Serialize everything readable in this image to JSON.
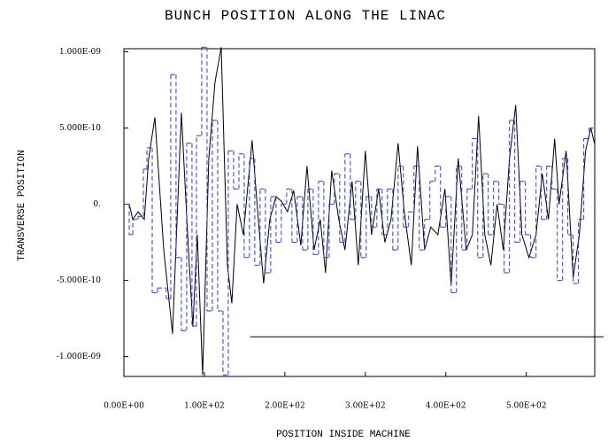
{
  "chart_data": {
    "type": "line",
    "title": "BUNCH POSITION ALONG THE LINAC",
    "xlabel": "POSITION INSIDE MACHINE",
    "ylabel": "TRANSVERSE POSITION",
    "xlim": [
      0,
      585
    ],
    "ylim": [
      -1.13e-09,
      1.02e-09
    ],
    "xticks": [
      {
        "value": 0,
        "label": "0.00E+00"
      },
      {
        "value": 100,
        "label": "1.00E+02"
      },
      {
        "value": 200,
        "label": "2.00E+02"
      },
      {
        "value": 300,
        "label": "3.00E+02"
      },
      {
        "value": 400,
        "label": "4.00E+02"
      },
      {
        "value": 500,
        "label": "5.00E+02"
      }
    ],
    "yticks": [
      {
        "value": 1e-09,
        "label": "1.000E-09"
      },
      {
        "value": 5e-10,
        "label": "5.000E-10"
      },
      {
        "value": 0,
        "label": "0."
      },
      {
        "value": -5e-10,
        "label": "-5.000E-10"
      },
      {
        "value": -1e-09,
        "label": "-1.000E-09"
      }
    ],
    "series": [
      {
        "color": "#000000",
        "dash": false,
        "drawstyle": "linear",
        "x": [
          0,
          6.6,
          11,
          17.6,
          25.3,
          30.8,
          38.5,
          49.5,
          60.4,
          71.4,
          80.2,
          85.7,
          91.2,
          97.8,
          105.5,
          113.2,
          120.9,
          128.6,
          134.1,
          140.7,
          148.4,
          159.3,
          167,
          173.6,
          181.3,
          189,
          195.6,
          203.3,
          211,
          219.8,
          227.5,
          236.3,
          244,
          250.5,
          258.2,
          267,
          274.7,
          283.5,
          291.2,
          300,
          307.7,
          316.5,
          324.2,
          331.9,
          340.7,
          348.4,
          357.1,
          364.8,
          373.6,
          381.3,
          390.1,
          398.9,
          406.6,
          415.4,
          425.3,
          433,
          440.7,
          448.4,
          456,
          463.7,
          471.4,
          479.1,
          486.8,
          494.5,
          503.3,
          512.1,
          519.8,
          527.5,
          535.2,
          540.7,
          549.5,
          558.2,
          565.9,
          573.6,
          580.2,
          584.6
        ],
        "values": [
          0,
          0,
          -1e-10,
          -5e-11,
          -1e-10,
          3e-10,
          5.7e-10,
          -3e-10,
          -8.5e-10,
          6e-10,
          -3e-10,
          -8e-10,
          -2e-10,
          -1.12e-09,
          3e-10,
          8e-10,
          1.03e-09,
          -4e-10,
          -6.5e-10,
          0,
          -2e-10,
          4.2e-10,
          -1e-10,
          -5.2e-10,
          -1e-10,
          5e-11,
          2e-11,
          -5e-11,
          9e-11,
          -2.7e-10,
          2.5e-10,
          -3e-10,
          -1e-10,
          -4.5e-10,
          2.2e-10,
          -1e-10,
          -3e-10,
          1.5e-10,
          -4e-10,
          3.5e-10,
          -2e-10,
          1e-10,
          -2.5e-10,
          -1e-10,
          4e-10,
          -5e-11,
          -4e-10,
          3.8e-10,
          -3e-10,
          -1.5e-10,
          -2e-10,
          1e-10,
          -5.3e-10,
          3e-10,
          -3e-10,
          -2e-10,
          5.8e-10,
          -2e-10,
          -4e-10,
          0,
          -3e-10,
          3e-10,
          6.5e-10,
          -2e-10,
          -3.5e-10,
          -2e-10,
          2e-10,
          -1e-10,
          4.3e-10,
          0,
          3.5e-10,
          -4.8e-10,
          -2e-10,
          3.5e-10,
          5e-10,
          4e-10
        ]
      },
      {
        "color": "#2a3bd6",
        "dash": true,
        "drawstyle": "steps-post",
        "x": [
          0,
          6.6,
          11,
          17.6,
          24.2,
          28.6,
          35.2,
          41.8,
          52.7,
          58.2,
          64.8,
          71.4,
          78,
          84.6,
          90.1,
          96.7,
          103.3,
          109.9,
          116.5,
          123.1,
          129.7,
          136.3,
          142.9,
          149.5,
          156,
          162.6,
          169.2,
          175.8,
          182.4,
          189,
          195.6,
          202.2,
          208.8,
          215.4,
          222,
          228.6,
          235.2,
          241.8,
          248.4,
          255,
          261.5,
          268.1,
          274.7,
          281.3,
          287.9,
          294.5,
          301.1,
          307.7,
          314.3,
          320.9,
          327.5,
          334.1,
          340.7,
          347.3,
          353.8,
          360.4,
          367,
          373.6,
          380.2,
          386.8,
          393.4,
          400,
          406.6,
          413.2,
          419.8,
          426.4,
          433,
          439.6,
          446.2,
          452.7,
          459.3,
          465.9,
          472.5,
          479.1,
          485.7,
          492.3,
          498.9,
          505.5,
          512.1,
          518.7,
          525.3,
          531.9,
          538.5,
          545.1,
          551.6,
          558.2,
          564.8,
          571.4,
          578,
          584.6
        ],
        "values": [
          0,
          -2e-10,
          -1e-10,
          -8e-11,
          2.3e-10,
          3.7e-10,
          -5.8e-10,
          -5.5e-10,
          -6.2e-10,
          8.5e-10,
          -3.5e-10,
          -8.3e-10,
          4e-10,
          -8e-10,
          4.5e-10,
          1.03e-09,
          -7e-10,
          5.5e-10,
          -7e-10,
          -1.12e-09,
          3.5e-10,
          1e-10,
          3.3e-10,
          -3.5e-10,
          3e-10,
          -4e-10,
          1e-10,
          -4.5e-10,
          5e-11,
          -2.5e-10,
          0,
          1e-10,
          -2.5e-10,
          5e-11,
          -3e-10,
          1e-10,
          -3.3e-10,
          1.5e-10,
          -3.5e-10,
          0,
          2e-10,
          -2.5e-10,
          3.3e-10,
          -1e-10,
          1.5e-10,
          -3.5e-10,
          5e-11,
          -1.5e-10,
          1e-10,
          -2e-10,
          1e-10,
          -3e-10,
          2.5e-10,
          -1.5e-10,
          -5e-11,
          2.5e-10,
          -3e-10,
          -1e-10,
          1.5e-10,
          2.5e-10,
          -1.5e-10,
          5e-11,
          -5.8e-10,
          2.5e-10,
          -3e-10,
          1e-10,
          4.3e-10,
          -3.5e-10,
          2e-10,
          -2e-10,
          1.5e-10,
          0,
          -4.5e-10,
          5.5e-10,
          -2.5e-10,
          1.5e-10,
          -2e-10,
          -3.5e-10,
          2.5e-10,
          -1e-10,
          2.5e-10,
          1e-10,
          -5e-10,
          3e-10,
          -2e-10,
          -5.2e-10,
          -1e-10,
          4.3e-10,
          5e-10,
          5e-10
        ]
      },
      {
        "color": "#000000",
        "dash": false,
        "drawstyle": "linear",
        "x": [
          157,
          596
        ],
        "values": [
          -8.7e-10,
          -8.7e-10
        ]
      }
    ]
  }
}
